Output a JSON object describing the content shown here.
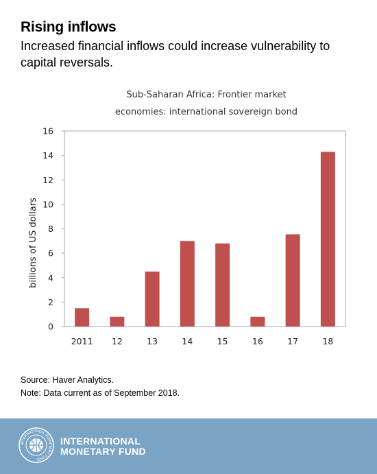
{
  "header": {
    "title": "Rising inflows",
    "subtitle": "Increased financial inflows could increase vulnerability to capital reversals."
  },
  "chart_data": {
    "type": "bar",
    "title_lines": [
      "Sub-Saharan Africa: Frontier market",
      "economies: international sovereign bond"
    ],
    "categories": [
      "2011",
      "12",
      "13",
      "14",
      "15",
      "16",
      "17",
      "18"
    ],
    "values": [
      1.5,
      0.8,
      4.5,
      7.0,
      6.8,
      0.8,
      7.55,
      14.3
    ],
    "xlabel": "",
    "ylabel": "billions of US dollars",
    "ylim": [
      0,
      16
    ],
    "yticks": [
      "0",
      "2",
      "4",
      "6",
      "8",
      "10",
      "12",
      "14",
      "16"
    ],
    "bar_color": "#c0504d",
    "grid": false,
    "legend": "none"
  },
  "notes": {
    "source": "Source: Haver Analytics.",
    "note": "Note: Data current as of September 2018."
  },
  "footer": {
    "line1": "INTERNATIONAL",
    "line2": "MONETARY FUND",
    "background_color": "#7aa4c4",
    "seal_text": "INTERNATIONAL MONETARY FUND"
  }
}
